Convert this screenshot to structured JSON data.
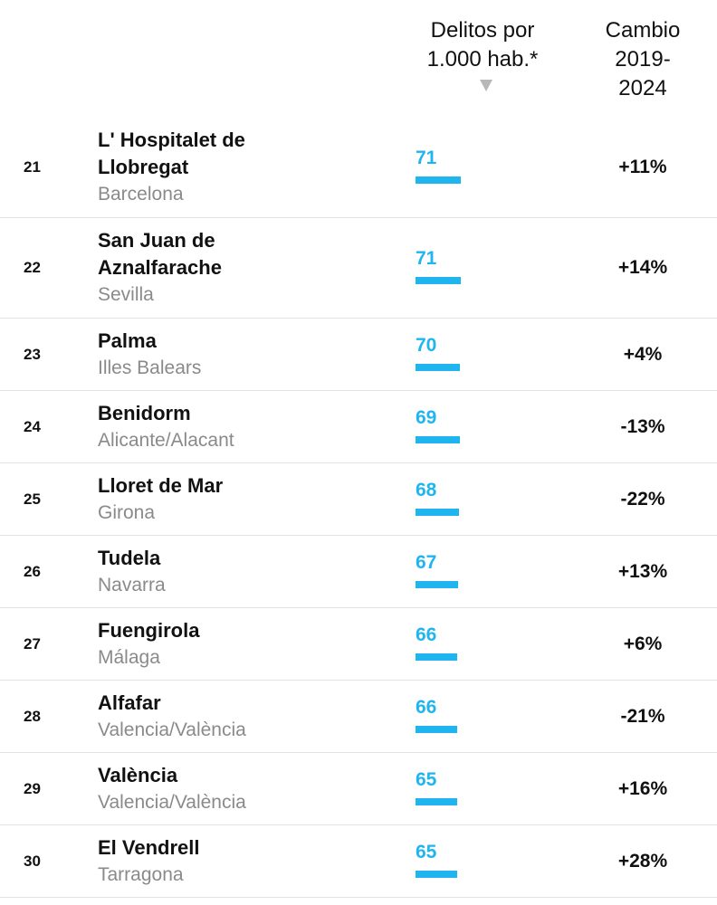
{
  "header": {
    "delitos_line1": "Delitos por",
    "delitos_line2": "1.000 hab.*",
    "cambio_line1": "Cambio",
    "cambio_line2": "2019-",
    "cambio_line3": "2024"
  },
  "chart_data": {
    "type": "table",
    "columns": [
      "",
      "",
      "Delitos por 1.000 hab.*",
      "Cambio 2019-2024"
    ],
    "sort": "Delitos por 1.000 hab.* descending",
    "rows": [
      {
        "rank": "21",
        "name_lines": [
          "L' Hospitalet de",
          "Llobregat"
        ],
        "province": "Barcelona",
        "value": 71,
        "change": "+11%"
      },
      {
        "rank": "22",
        "name_lines": [
          "San Juan de",
          "Aznalfarache"
        ],
        "province": "Sevilla",
        "value": 71,
        "change": "+14%"
      },
      {
        "rank": "23",
        "name_lines": [
          "Palma"
        ],
        "province": "Illes Balears",
        "value": 70,
        "change": "+4%"
      },
      {
        "rank": "24",
        "name_lines": [
          "Benidorm"
        ],
        "province": "Alicante/Alacant",
        "value": 69,
        "change": "-13%"
      },
      {
        "rank": "25",
        "name_lines": [
          "Lloret de Mar"
        ],
        "province": "Girona",
        "value": 68,
        "change": "-22%"
      },
      {
        "rank": "26",
        "name_lines": [
          "Tudela"
        ],
        "province": "Navarra",
        "value": 67,
        "change": "+13%"
      },
      {
        "rank": "27",
        "name_lines": [
          "Fuengirola"
        ],
        "province": "Málaga",
        "value": 66,
        "change": "+6%"
      },
      {
        "rank": "28",
        "name_lines": [
          "Alfafar"
        ],
        "province": "Valencia/València",
        "value": 66,
        "change": "-21%"
      },
      {
        "rank": "29",
        "name_lines": [
          "València"
        ],
        "province": "Valencia/València",
        "value": 65,
        "change": "+16%"
      },
      {
        "rank": "30",
        "name_lines": [
          "El Vendrell"
        ],
        "province": "Tarragona",
        "value": 65,
        "change": "+28%"
      }
    ]
  },
  "colors": {
    "bar": "#1fb6ef",
    "province_text": "#8a8a8a",
    "divider": "#e2e2e2"
  }
}
